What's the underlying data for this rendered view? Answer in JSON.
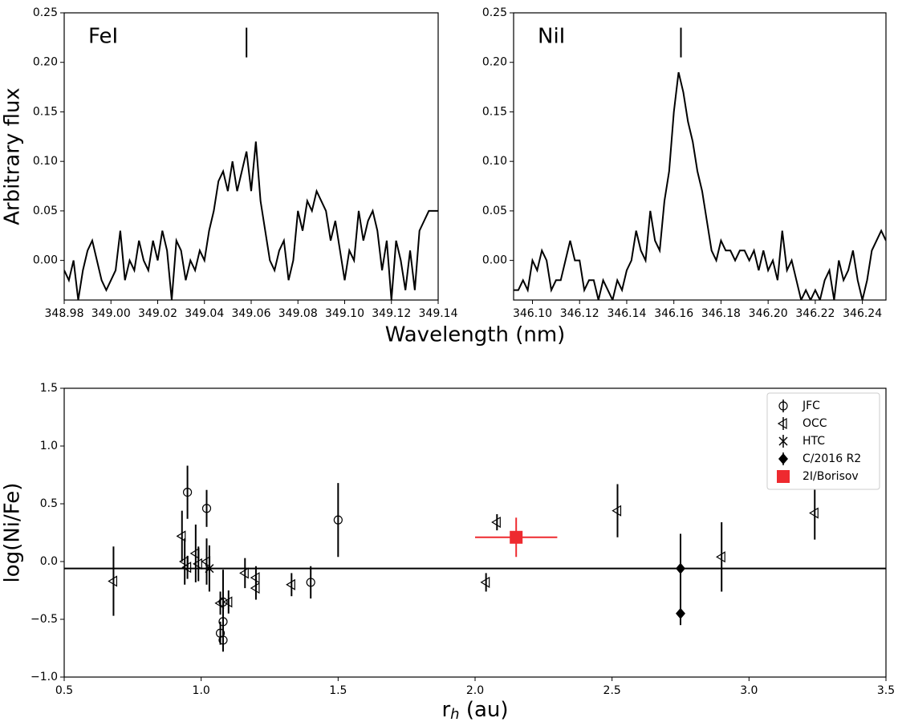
{
  "chart_data": [
    {
      "type": "line",
      "annotation": "FeI",
      "ylabel": "Arbitrary flux",
      "xlabel": "Wavelength (nm)",
      "color": "#000000",
      "xlim": [
        348.98,
        349.14
      ],
      "ylim": [
        -0.04,
        0.25
      ],
      "xticks": [
        348.98,
        {
          "value": 349,
          "label": "349.00"
        },
        349.02,
        349.04,
        349.06,
        349.08,
        {
          "value": 349.1,
          "label": "349.10"
        },
        349.12,
        349.14
      ],
      "yticks": [
        {
          "value": 0,
          "label": "0.00"
        },
        0.05,
        {
          "value": 0.1,
          "label": "0.10"
        },
        0.15,
        {
          "value": 0.2,
          "label": "0.20"
        },
        0.25
      ],
      "marker": {
        "x": 349.058,
        "y": [
          0.205,
          0.235
        ]
      },
      "x": [
        348.98,
        348.982,
        348.984,
        348.986,
        348.988,
        348.99,
        348.992,
        348.994,
        348.996,
        348.998,
        349,
        349.002,
        349.004,
        349.006,
        349.008,
        349.01,
        349.012,
        349.014,
        349.016,
        349.018,
        349.02,
        349.022,
        349.024,
        349.026,
        349.028,
        349.03,
        349.032,
        349.034,
        349.036,
        349.038,
        349.04,
        349.042,
        349.044,
        349.046,
        349.048,
        349.05,
        349.052,
        349.054,
        349.056,
        349.058,
        349.06,
        349.062,
        349.064,
        349.066,
        349.068,
        349.07,
        349.072,
        349.074,
        349.076,
        349.078,
        349.08,
        349.082,
        349.084,
        349.086,
        349.088,
        349.09,
        349.092,
        349.094,
        349.096,
        349.098,
        349.1,
        349.102,
        349.104,
        349.106,
        349.108,
        349.11,
        349.112,
        349.114,
        349.116,
        349.118,
        349.12,
        349.122,
        349.124,
        349.126,
        349.128,
        349.13,
        349.132,
        349.134,
        349.136,
        349.138,
        349.14
      ],
      "values": [
        -0.01,
        -0.02,
        0.0,
        -0.04,
        -0.01,
        0.01,
        0.02,
        0.0,
        -0.02,
        -0.03,
        -0.02,
        -0.01,
        0.03,
        -0.02,
        0.0,
        -0.01,
        0.02,
        0.0,
        -0.01,
        0.02,
        0.0,
        0.03,
        0.01,
        -0.04,
        0.02,
        0.01,
        -0.02,
        0.0,
        -0.01,
        0.01,
        0.0,
        0.03,
        0.05,
        0.08,
        0.09,
        0.07,
        0.1,
        0.07,
        0.09,
        0.11,
        0.07,
        0.12,
        0.06,
        0.03,
        0.0,
        -0.01,
        0.01,
        0.02,
        -0.02,
        0.0,
        0.05,
        0.03,
        0.06,
        0.05,
        0.07,
        0.06,
        0.05,
        0.02,
        0.04,
        0.01,
        -0.02,
        0.01,
        0.0,
        0.05,
        0.02,
        0.04,
        0.05,
        0.03,
        -0.01,
        0.02,
        -0.04,
        0.02,
        0.0,
        -0.03,
        0.01,
        -0.03,
        0.03,
        0.04,
        0.05,
        0.05,
        0.05
      ]
    },
    {
      "type": "line",
      "annotation": "NiI",
      "color": "#000000",
      "xlim": [
        346.092,
        346.25
      ],
      "ylim": [
        -0.04,
        0.25
      ],
      "xticks": [
        {
          "value": 346.1,
          "label": "346.10"
        },
        346.12,
        346.14,
        346.16,
        346.18,
        {
          "value": 346.2,
          "label": "346.20"
        },
        346.22,
        346.24
      ],
      "yticks": [
        {
          "value": 0,
          "label": "0.00"
        },
        0.05,
        {
          "value": 0.1,
          "label": "0.10"
        },
        0.15,
        {
          "value": 0.2,
          "label": "0.20"
        },
        0.25
      ],
      "marker": {
        "x": 346.163,
        "y": [
          0.205,
          0.235
        ]
      },
      "x": [
        346.092,
        346.094,
        346.096,
        346.098,
        346.1,
        346.102,
        346.104,
        346.106,
        346.108,
        346.11,
        346.112,
        346.114,
        346.116,
        346.118,
        346.12,
        346.122,
        346.124,
        346.126,
        346.128,
        346.13,
        346.132,
        346.134,
        346.136,
        346.138,
        346.14,
        346.142,
        346.144,
        346.146,
        346.148,
        346.15,
        346.152,
        346.154,
        346.156,
        346.158,
        346.16,
        346.162,
        346.164,
        346.166,
        346.168,
        346.17,
        346.172,
        346.174,
        346.176,
        346.178,
        346.18,
        346.182,
        346.184,
        346.186,
        346.188,
        346.19,
        346.192,
        346.194,
        346.196,
        346.198,
        346.2,
        346.202,
        346.204,
        346.206,
        346.208,
        346.21,
        346.212,
        346.214,
        346.216,
        346.218,
        346.22,
        346.222,
        346.224,
        346.226,
        346.228,
        346.23,
        346.232,
        346.234,
        346.236,
        346.238,
        346.24,
        346.242,
        346.244,
        346.246,
        346.248,
        346.25
      ],
      "values": [
        -0.03,
        -0.03,
        -0.02,
        -0.03,
        0.0,
        -0.01,
        0.01,
        0.0,
        -0.03,
        -0.02,
        -0.02,
        0.0,
        0.02,
        0.0,
        0.0,
        -0.03,
        -0.02,
        -0.02,
        -0.04,
        -0.02,
        -0.03,
        -0.04,
        -0.02,
        -0.03,
        -0.01,
        0.0,
        0.03,
        0.01,
        0.0,
        0.05,
        0.02,
        0.01,
        0.06,
        0.09,
        0.15,
        0.19,
        0.17,
        0.14,
        0.12,
        0.09,
        0.07,
        0.04,
        0.01,
        0.0,
        0.02,
        0.01,
        0.01,
        0.0,
        0.01,
        0.01,
        0.0,
        0.01,
        -0.01,
        0.01,
        -0.01,
        0.0,
        -0.02,
        0.03,
        -0.01,
        0.0,
        -0.02,
        -0.04,
        -0.03,
        -0.04,
        -0.03,
        -0.04,
        -0.02,
        -0.01,
        -0.04,
        0.0,
        -0.02,
        -0.01,
        0.01,
        -0.02,
        -0.04,
        -0.02,
        0.01,
        0.02,
        0.03,
        0.02
      ]
    },
    {
      "type": "scatter",
      "ylabel": "log(Ni/Fe)",
      "xlabel": [
        "r",
        "h",
        " (au)"
      ],
      "legend": "upper right",
      "xlim": [
        0.5,
        3.5
      ],
      "ylim": [
        -1.0,
        1.5
      ],
      "xticks": [
        0.5,
        {
          "value": 1,
          "label": "1.0"
        },
        1.5,
        {
          "value": 2,
          "label": "2.0"
        },
        2.5,
        {
          "value": 3,
          "label": "3.0"
        },
        3.5
      ],
      "yticks": [
        {
          "value": -1,
          "label": "−1.0"
        },
        {
          "value": -0.5,
          "label": "−0.5"
        },
        {
          "value": 0,
          "label": "0.0"
        },
        0.5,
        {
          "value": 1,
          "label": "1.0"
        },
        1.5
      ],
      "hline": -0.06,
      "series": [
        {
          "name": "JFC",
          "marker": "circle",
          "color": "#000000",
          "x": [
            0.95,
            1.02,
            1.5,
            1.4,
            1.07,
            1.08,
            1.08,
            1.08
          ],
          "y": [
            0.6,
            0.46,
            0.36,
            -0.18,
            -0.62,
            -0.68,
            -0.52,
            -0.35
          ],
          "yerr": [
            0.23,
            0.16,
            0.32,
            0.14,
            0.1,
            0.1,
            0.1,
            0.28
          ]
        },
        {
          "name": "OCC",
          "marker": "triangle-left",
          "color": "#000000",
          "x": [
            0.68,
            0.93,
            0.94,
            0.95,
            0.98,
            0.99,
            1.02,
            1.07,
            1.1,
            1.16,
            1.2,
            1.2,
            1.33,
            2.04,
            2.08,
            2.52,
            2.9,
            3.24
          ],
          "y": [
            -0.17,
            0.22,
            0.0,
            -0.05,
            0.07,
            -0.02,
            0.0,
            -0.36,
            -0.35,
            -0.1,
            -0.14,
            -0.23,
            -0.2,
            -0.18,
            0.34,
            0.44,
            0.04,
            0.42
          ],
          "yerr": [
            0.3,
            0.22,
            0.2,
            0.1,
            0.25,
            0.15,
            0.2,
            0.1,
            0.1,
            0.13,
            0.1,
            0.1,
            0.1,
            0.08,
            0.07,
            0.23,
            0.3,
            0.23
          ]
        },
        {
          "name": "HTC",
          "marker": "x",
          "color": "#000000",
          "x": [
            1.03
          ],
          "y": [
            -0.06
          ],
          "yerr": [
            0.2
          ]
        },
        {
          "name": "C/2016 R2",
          "marker": "diamond",
          "color": "#000000",
          "x": [
            2.75,
            2.75
          ],
          "y": [
            -0.06,
            -0.45
          ],
          "yerr": [
            0.3,
            0.1
          ]
        },
        {
          "name": "2I/Borisov",
          "marker": "square",
          "color": "#ee2a2f",
          "x": [
            2.15
          ],
          "y": [
            0.21
          ],
          "yerr": [
            0.17
          ],
          "xerr": [
            0.15
          ]
        }
      ]
    }
  ]
}
